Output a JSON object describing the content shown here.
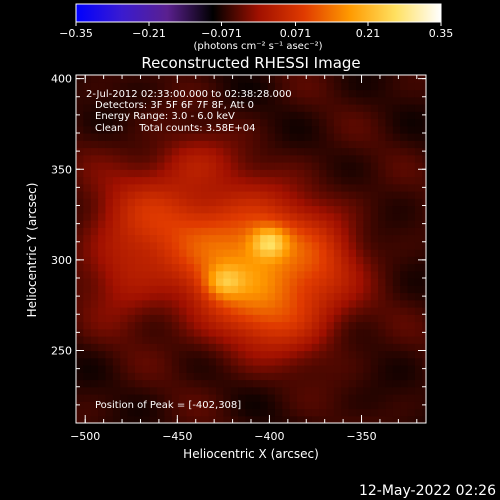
{
  "chart_data": {
    "type": "heatmap",
    "title": "Reconstructed RHESSI Image",
    "xlabel": "Heliocentric X (arcsec)",
    "ylabel": "Heliocentric Y (arcsec)",
    "xlim": [
      -505,
      -315
    ],
    "ylim": [
      210,
      402
    ],
    "xticks": [
      -500,
      -450,
      -400,
      -350
    ],
    "xtick_labels": [
      "−500",
      "−450",
      "−400",
      "−350"
    ],
    "yticks": [
      250,
      300,
      350,
      400
    ],
    "ytick_labels": [
      "250",
      "300",
      "350",
      "400"
    ],
    "colorbar": {
      "range": [
        -0.35,
        0.35
      ],
      "ticks": [
        -0.35,
        -0.21,
        -0.071,
        0.071,
        0.21,
        0.35
      ],
      "tick_labels": [
        "−0.35",
        "−0.21",
        "−0.071",
        "0.071",
        "0.21",
        "0.35"
      ],
      "unit_label": "(photons cm⁻² s⁻¹ asec⁻²)",
      "colormap": [
        "#0000ff",
        "#3a1bd0",
        "#5a208f",
        "#000000",
        "#a01000",
        "#e03a00",
        "#ff9a00",
        "#ffe060",
        "#ffffff"
      ]
    },
    "annotations": [
      "2-Jul-2012 02:33:00.000 to 02:38:28.000",
      "Detectors: 3F 5F 6F 7F 8F, Att 0",
      "Energy Range: 3.0 - 6.0 keV",
      "Clean     Total counts: 3.58E+04",
      "Position of Peak = [-402,308]"
    ],
    "peak": [
      -402,
      308
    ],
    "sources": [
      {
        "x": -400,
        "y": 310,
        "sx": 7,
        "sy": 6,
        "amp": 0.14
      },
      {
        "x": -425,
        "y": 288,
        "sx": 7,
        "sy": 6,
        "amp": 0.1
      },
      {
        "x": -410,
        "y": 300,
        "sx": 28,
        "sy": 24,
        "amp": 0.22
      },
      {
        "x": -462,
        "y": 325,
        "sx": 24,
        "sy": 20,
        "amp": 0.1
      },
      {
        "x": -480,
        "y": 290,
        "sx": 14,
        "sy": 18,
        "amp": 0.06
      },
      {
        "x": -395,
        "y": 268,
        "sx": 22,
        "sy": 16,
        "amp": 0.08
      },
      {
        "x": -370,
        "y": 300,
        "sx": 14,
        "sy": 18,
        "amp": 0.05
      },
      {
        "x": -440,
        "y": 355,
        "sx": 14,
        "sy": 10,
        "amp": 0.05
      }
    ],
    "baseline": -0.06
  },
  "footer": {
    "timestamp": "12-May-2022 02:26"
  }
}
